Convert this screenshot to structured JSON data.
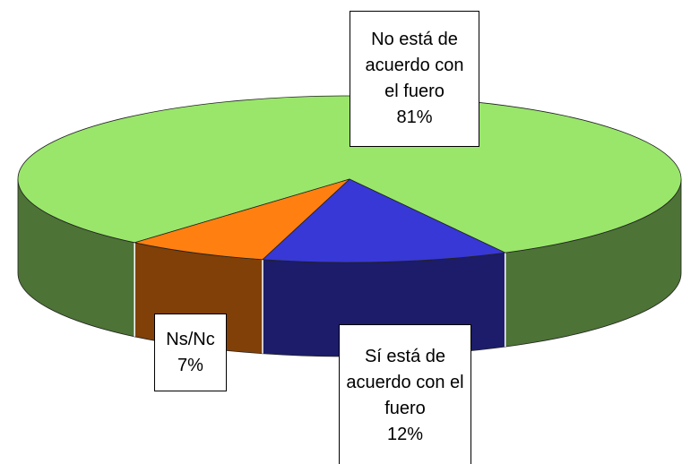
{
  "chart_data": {
    "type": "pie3d",
    "categories": [
      "No está de acuerdo con el fuero",
      "Sí está de acuerdo con el fuero",
      "Ns/Nc"
    ],
    "values": [
      81,
      12,
      7
    ],
    "value_labels": [
      "81%",
      "12%",
      "7%"
    ],
    "colors": [
      "#99e66b",
      "#3838d6",
      "#ff8010"
    ]
  }
}
